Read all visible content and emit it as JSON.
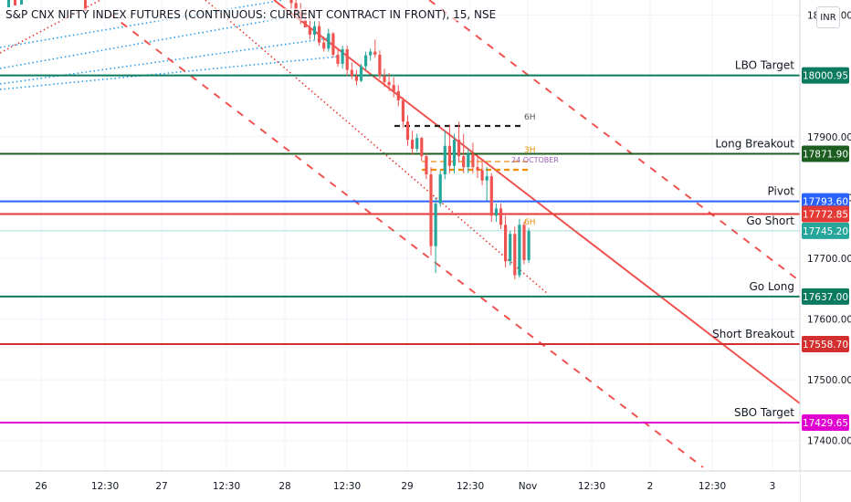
{
  "title": "S&P CNX NIFTY INDEX FUTURES (CONTINUOUS: CURRENT CONTRACT IN FRONT), 15, NSE",
  "currency": "INR",
  "colors": {
    "up": "#26a69a",
    "down": "#ef5350",
    "grid": "#f0f3fa",
    "axis_text": "#131722",
    "channel": "#f05350",
    "dotted_blue": "#2c9ce8",
    "dotted_red": "#e53935"
  },
  "chart_data": {
    "type": "candlestick",
    "ylim": [
      17350,
      18125
    ],
    "y_ticks": [
      "18100.00",
      "17900.00",
      "17800.00",
      "17700.00",
      "17600.00",
      "17500.00",
      "17400.00"
    ],
    "x_tick_labels": [
      "26",
      "12:30",
      "27",
      "12:30",
      "28",
      "12:30",
      "29",
      "12:30",
      "Nov",
      "12:30",
      "2",
      "12:30",
      "3"
    ],
    "grid": true,
    "levels": [
      {
        "label": "LBO Target",
        "value": 18000.95,
        "price_text": "18000.95",
        "color": "#0b7a5e"
      },
      {
        "label": "Long Breakout",
        "value": 17871.9,
        "price_text": "17871.90",
        "color": "#1b5e20"
      },
      {
        "label": "Pivot",
        "value": 17793.6,
        "price_text": "17793.60",
        "color": "#2962ff"
      },
      {
        "label": "",
        "value": 17772.85,
        "price_text": "17772.85",
        "color": "#e53935"
      },
      {
        "label": "Go Short",
        "value": 17745.2,
        "price_text": "17745.20",
        "color": "#26a69a"
      },
      {
        "label": "Go Long",
        "value": 17637.0,
        "price_text": "17637.00",
        "color": "#0b7a5e"
      },
      {
        "label": "Short Breakout",
        "value": 17558.7,
        "price_text": "17558.70",
        "color": "#d32f2f"
      },
      {
        "label": "SBO Target",
        "value": 17429.65,
        "price_text": "17429.65",
        "color": "#e000d0"
      }
    ],
    "annotations": [
      "6H",
      "3H",
      "24 OCTOBER",
      "6H"
    ],
    "candles": [
      {
        "o": 18140,
        "h": 18155,
        "l": 18110,
        "c": 18120
      },
      {
        "o": 18120,
        "h": 18130,
        "l": 18100,
        "c": 18105
      },
      {
        "o": 18105,
        "h": 18120,
        "l": 18085,
        "c": 18092
      },
      {
        "o": 18092,
        "h": 18112,
        "l": 18080,
        "c": 18080
      },
      {
        "o": 18080,
        "h": 18095,
        "l": 18060,
        "c": 18068
      },
      {
        "o": 18068,
        "h": 18090,
        "l": 18060,
        "c": 18082
      },
      {
        "o": 18082,
        "h": 18090,
        "l": 18050,
        "c": 18055
      },
      {
        "o": 18055,
        "h": 18065,
        "l": 18040,
        "c": 18045
      },
      {
        "o": 18045,
        "h": 18078,
        "l": 18040,
        "c": 18070
      },
      {
        "o": 18070,
        "h": 18072,
        "l": 18030,
        "c": 18035
      },
      {
        "o": 18035,
        "h": 18045,
        "l": 18015,
        "c": 18020
      },
      {
        "o": 18020,
        "h": 18050,
        "l": 18012,
        "c": 18044
      },
      {
        "o": 18044,
        "h": 18050,
        "l": 18000,
        "c": 18010
      },
      {
        "o": 18010,
        "h": 18022,
        "l": 17995,
        "c": 18000
      },
      {
        "o": 18000,
        "h": 18010,
        "l": 17985,
        "c": 17992
      },
      {
        "o": 17992,
        "h": 18020,
        "l": 17990,
        "c": 18016
      },
      {
        "o": 18016,
        "h": 18040,
        "l": 18010,
        "c": 18034
      },
      {
        "o": 18034,
        "h": 18045,
        "l": 18025,
        "c": 18040
      },
      {
        "o": 18040,
        "h": 18060,
        "l": 18030,
        "c": 18035
      },
      {
        "o": 18035,
        "h": 18042,
        "l": 17995,
        "c": 18000
      },
      {
        "o": 18000,
        "h": 18012,
        "l": 17982,
        "c": 17990
      },
      {
        "o": 17990,
        "h": 18005,
        "l": 17975,
        "c": 17985
      },
      {
        "o": 17985,
        "h": 17998,
        "l": 17965,
        "c": 17975
      },
      {
        "o": 17975,
        "h": 17985,
        "l": 17950,
        "c": 17960
      },
      {
        "o": 17960,
        "h": 17965,
        "l": 17915,
        "c": 17925
      },
      {
        "o": 17925,
        "h": 17935,
        "l": 17885,
        "c": 17895
      },
      {
        "o": 17895,
        "h": 17910,
        "l": 17870,
        "c": 17880
      },
      {
        "o": 17880,
        "h": 17905,
        "l": 17875,
        "c": 17898
      },
      {
        "o": 17898,
        "h": 17900,
        "l": 17860,
        "c": 17868
      },
      {
        "o": 17868,
        "h": 17872,
        "l": 17830,
        "c": 17838
      },
      {
        "o": 17838,
        "h": 17850,
        "l": 17705,
        "c": 17720
      },
      {
        "o": 17720,
        "h": 17800,
        "l": 17676,
        "c": 17790
      },
      {
        "o": 17790,
        "h": 17845,
        "l": 17785,
        "c": 17838
      },
      {
        "o": 17838,
        "h": 17910,
        "l": 17830,
        "c": 17885
      },
      {
        "o": 17885,
        "h": 17920,
        "l": 17840,
        "c": 17852
      },
      {
        "o": 17852,
        "h": 17905,
        "l": 17840,
        "c": 17895
      },
      {
        "o": 17895,
        "h": 17925,
        "l": 17858,
        "c": 17868
      },
      {
        "o": 17868,
        "h": 17905,
        "l": 17840,
        "c": 17850
      },
      {
        "o": 17850,
        "h": 17880,
        "l": 17840,
        "c": 17872
      },
      {
        "o": 17872,
        "h": 17890,
        "l": 17840,
        "c": 17850
      },
      {
        "o": 17850,
        "h": 17870,
        "l": 17832,
        "c": 17845
      },
      {
        "o": 17845,
        "h": 17860,
        "l": 17820,
        "c": 17828
      },
      {
        "o": 17828,
        "h": 17850,
        "l": 17795,
        "c": 17835
      },
      {
        "o": 17835,
        "h": 17840,
        "l": 17760,
        "c": 17770
      },
      {
        "o": 17770,
        "h": 17790,
        "l": 17760,
        "c": 17782
      },
      {
        "o": 17782,
        "h": 17790,
        "l": 17748,
        "c": 17755
      },
      {
        "o": 17755,
        "h": 17770,
        "l": 17685,
        "c": 17695
      },
      {
        "o": 17695,
        "h": 17745,
        "l": 17688,
        "c": 17740
      },
      {
        "o": 17740,
        "h": 17752,
        "l": 17665,
        "c": 17672
      },
      {
        "o": 17672,
        "h": 17765,
        "l": 17668,
        "c": 17755
      },
      {
        "o": 17755,
        "h": 17760,
        "l": 17690,
        "c": 17697
      },
      {
        "o": 17697,
        "h": 17750,
        "l": 17692,
        "c": 17745
      }
    ]
  }
}
